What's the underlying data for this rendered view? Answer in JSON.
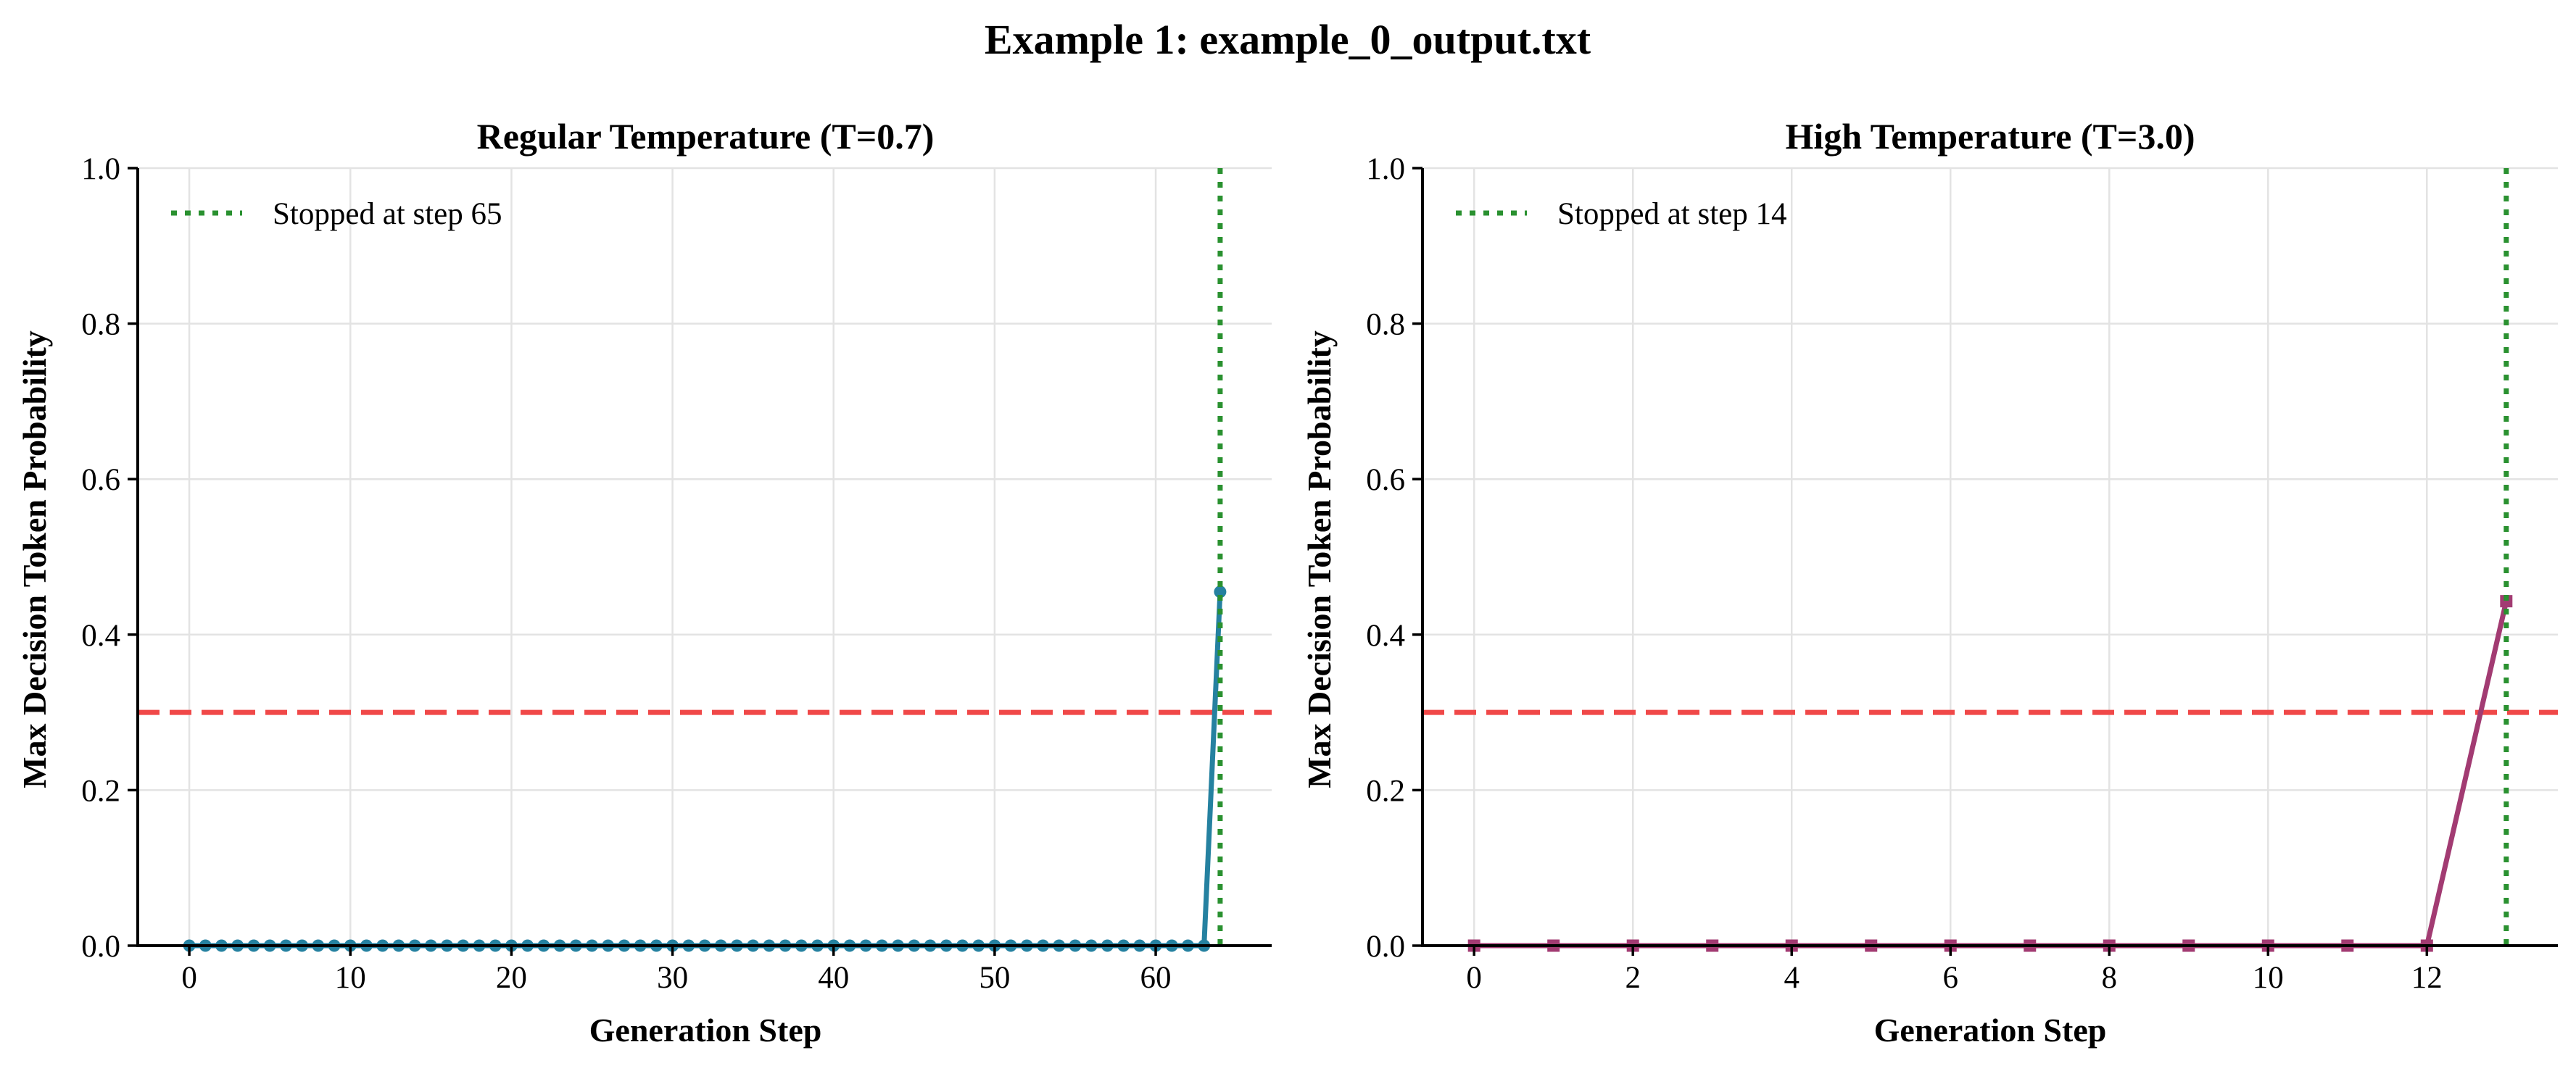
{
  "figure": {
    "title": "Example 1: example_0_output.txt"
  },
  "chart_data": [
    {
      "type": "line",
      "title": "Regular Temperature (T=0.7)",
      "xlabel": "Generation Step",
      "ylabel": "Max Decision Token Probability",
      "xlim": [
        -3.2,
        67.2
      ],
      "ylim": [
        0.0,
        1.0
      ],
      "xticks": [
        0,
        10,
        20,
        30,
        40,
        50,
        60
      ],
      "yticks": [
        0.0,
        0.2,
        0.4,
        0.6,
        0.8,
        1.0
      ],
      "xtick_labels": [
        "0",
        "10",
        "20",
        "30",
        "40",
        "50",
        "60"
      ],
      "ytick_labels": [
        "0.0",
        "0.2",
        "0.4",
        "0.6",
        "0.8",
        "1.0"
      ],
      "grid": true,
      "series": [
        {
          "color": "#2581a0",
          "marker": "circle",
          "x": [
            0,
            1,
            2,
            3,
            4,
            5,
            6,
            7,
            8,
            9,
            10,
            11,
            12,
            13,
            14,
            15,
            16,
            17,
            18,
            19,
            20,
            21,
            22,
            23,
            24,
            25,
            26,
            27,
            28,
            29,
            30,
            31,
            32,
            33,
            34,
            35,
            36,
            37,
            38,
            39,
            40,
            41,
            42,
            43,
            44,
            45,
            46,
            47,
            48,
            49,
            50,
            51,
            52,
            53,
            54,
            55,
            56,
            57,
            58,
            59,
            60,
            61,
            62,
            63,
            64
          ],
          "y": [
            0,
            0,
            0,
            0,
            0,
            0,
            0,
            0,
            0,
            0,
            0,
            0,
            0,
            0,
            0,
            0,
            0,
            0,
            0,
            0,
            0,
            0,
            0,
            0,
            0,
            0,
            0,
            0,
            0,
            0,
            0,
            0,
            0,
            0,
            0,
            0,
            0,
            0,
            0,
            0,
            0,
            0,
            0,
            0,
            0,
            0,
            0,
            0,
            0,
            0,
            0,
            0,
            0,
            0,
            0,
            0,
            0,
            0,
            0,
            0,
            0,
            0,
            0,
            0,
            0.455
          ]
        }
      ],
      "threshold": {
        "y": 0.3,
        "color": "#f04848",
        "style": "dashed"
      },
      "stop_line": {
        "x": 64,
        "color": "#2a9130",
        "style": "dotted",
        "label": "Stopped at step 65"
      },
      "legend_position": "top-left"
    },
    {
      "type": "line",
      "title": "High Temperature (T=3.0)",
      "xlabel": "Generation Step",
      "ylabel": "Max Decision Token Probability",
      "xlim": [
        -0.65,
        13.65
      ],
      "ylim": [
        0.0,
        1.0
      ],
      "xticks": [
        0,
        2,
        4,
        6,
        8,
        10,
        12
      ],
      "yticks": [
        0.0,
        0.2,
        0.4,
        0.6,
        0.8,
        1.0
      ],
      "xtick_labels": [
        "0",
        "2",
        "4",
        "6",
        "8",
        "10",
        "12"
      ],
      "ytick_labels": [
        "0.0",
        "0.2",
        "0.4",
        "0.6",
        "0.8",
        "1.0"
      ],
      "grid": true,
      "series": [
        {
          "color": "#a23b72",
          "marker": "square",
          "x": [
            0,
            1,
            2,
            3,
            4,
            5,
            6,
            7,
            8,
            9,
            10,
            11,
            12,
            13
          ],
          "y": [
            0,
            0,
            0,
            0,
            0,
            0,
            0,
            0,
            0,
            0,
            0,
            0,
            0,
            0.443
          ]
        }
      ],
      "threshold": {
        "y": 0.3,
        "color": "#f04848",
        "style": "dashed"
      },
      "stop_line": {
        "x": 13,
        "color": "#2a9130",
        "style": "dotted",
        "label": "Stopped at step 14"
      },
      "legend_position": "top-left"
    }
  ]
}
